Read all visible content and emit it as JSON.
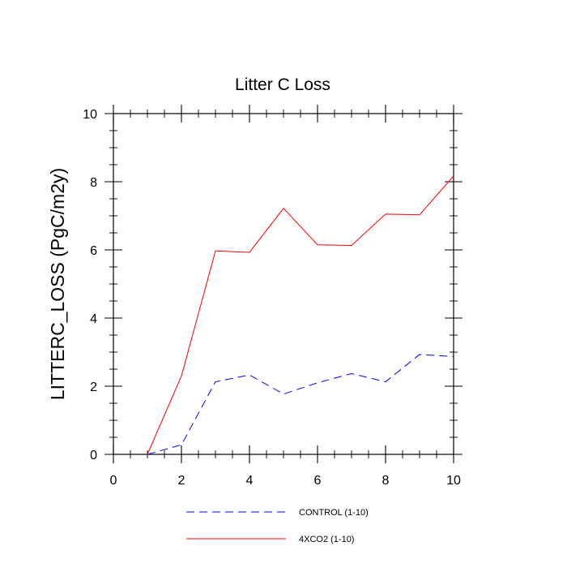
{
  "chart_data": {
    "type": "line",
    "title": "Litter C Loss",
    "xlabel": "",
    "ylabel": "LITTERC_LOSS  (PgC/m2y)",
    "xlim": [
      0,
      10
    ],
    "ylim": [
      0,
      10
    ],
    "xticks": [
      0,
      2,
      4,
      6,
      8,
      10
    ],
    "yticks": [
      0,
      2,
      4,
      6,
      8,
      10
    ],
    "x": [
      1,
      2,
      3,
      4,
      5,
      6,
      7,
      8,
      9,
      10
    ],
    "series": [
      {
        "name": "CONTROL (1-10)",
        "color": "#0000ff",
        "dash": "dashed",
        "values": [
          0.0,
          0.28,
          2.13,
          2.33,
          1.77,
          2.1,
          2.37,
          2.13,
          2.93,
          2.87
        ]
      },
      {
        "name": "4XCO2 (1-10)",
        "color": "#ff0000",
        "dash": "solid",
        "values": [
          0.0,
          2.3,
          5.97,
          5.93,
          7.22,
          6.15,
          6.13,
          7.05,
          7.03,
          8.17
        ]
      }
    ],
    "legend_position": "bottom-center",
    "grid": false
  }
}
